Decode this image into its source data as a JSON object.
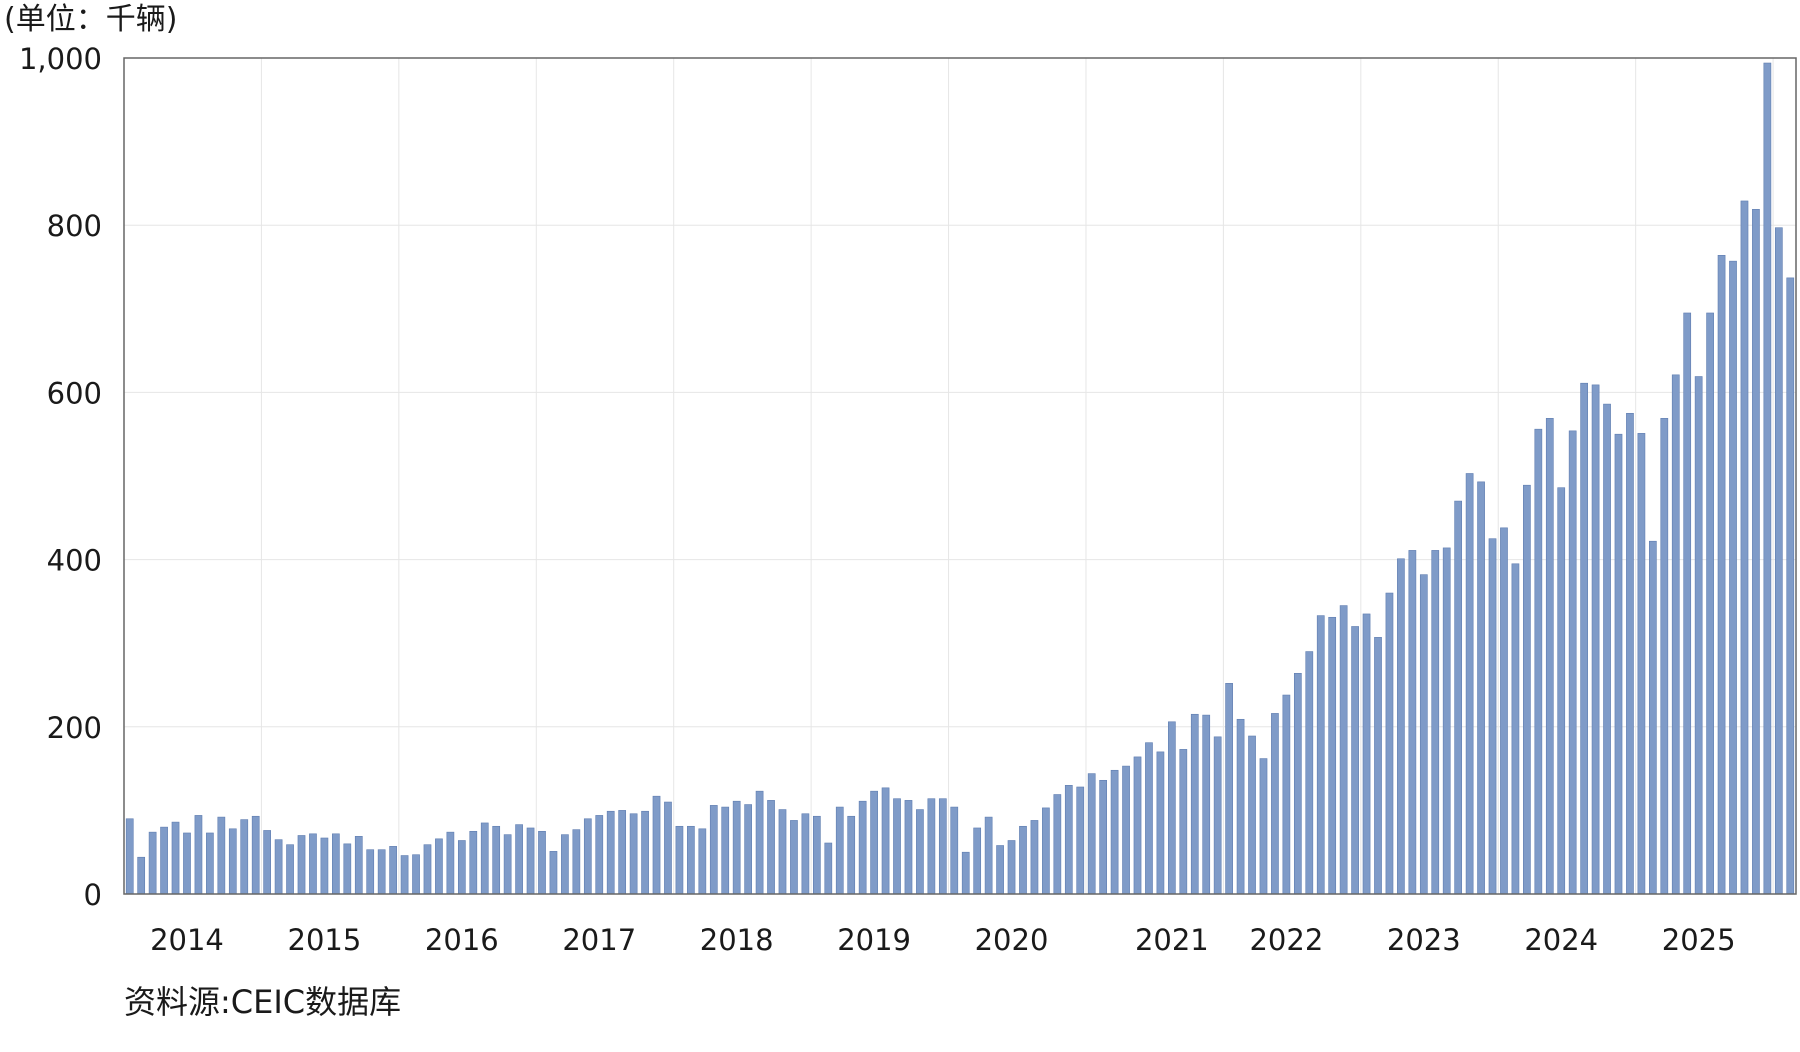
{
  "unit_label": "(单位：千辆)",
  "source_label": "资料源:CEIC数据库",
  "colors": {
    "bar": "#7f9bc8",
    "bar_edge": "#5f7db0",
    "grid": "#e6e6e6",
    "frame": "#666666"
  },
  "chart_data": {
    "type": "bar",
    "title": "",
    "xlabel": "",
    "ylabel": "(单位：千辆)",
    "ylim": [
      0,
      1000
    ],
    "yticks": [
      0,
      200,
      400,
      600,
      800,
      1000
    ],
    "ytick_labels": [
      "0",
      "200",
      "400",
      "600",
      "800",
      "1,000"
    ],
    "xtick_labels": [
      {
        "label": "2014",
        "index": 5
      },
      {
        "label": "2015",
        "index": 17
      },
      {
        "label": "2016",
        "index": 29
      },
      {
        "label": "2017",
        "index": 41
      },
      {
        "label": "2018",
        "index": 53
      },
      {
        "label": "2019",
        "index": 65
      },
      {
        "label": "2020",
        "index": 77
      },
      {
        "label": "2021",
        "index": 91
      },
      {
        "label": "2022",
        "index": 101
      },
      {
        "label": "2023",
        "index": 113
      },
      {
        "label": "2024",
        "index": 125
      },
      {
        "label": "2025",
        "index": 137
      }
    ],
    "grid": true,
    "values": [
      90,
      44,
      74,
      80,
      86,
      73,
      94,
      73,
      92,
      78,
      89,
      93,
      76,
      65,
      59,
      70,
      72,
      67,
      72,
      60,
      69,
      53,
      53,
      57,
      46,
      47,
      59,
      66,
      74,
      64,
      75,
      85,
      81,
      71,
      83,
      79,
      75,
      51,
      71,
      77,
      90,
      94,
      99,
      100,
      96,
      99,
      117,
      110,
      81,
      81,
      78,
      106,
      104,
      111,
      107,
      123,
      112,
      101,
      88,
      96,
      93,
      61,
      104,
      93,
      111,
      123,
      127,
      114,
      112,
      101,
      114,
      114,
      104,
      50,
      79,
      92,
      58,
      64,
      81,
      88,
      103,
      119,
      130,
      128,
      144,
      136,
      148,
      153,
      164,
      181,
      170,
      206,
      173,
      215,
      214,
      188,
      252,
      209,
      189,
      162,
      216,
      238,
      264,
      290,
      333,
      331,
      345,
      320,
      335,
      307,
      360,
      401,
      411,
      382,
      411,
      414,
      470,
      503,
      493,
      425,
      438,
      395,
      489,
      556,
      569,
      486,
      554,
      611,
      609,
      586,
      550,
      575,
      551,
      422,
      569,
      621,
      695,
      619,
      695,
      764,
      757,
      829,
      819,
      994,
      797,
      737
    ]
  }
}
